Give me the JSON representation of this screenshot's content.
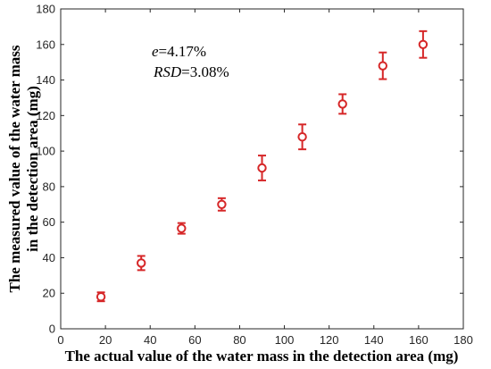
{
  "chart_data": {
    "type": "scatter",
    "xlabel": "The actual value of the water mass in the detection area (mg)",
    "ylabel_lines": [
      "The measured value of the water mass",
      "in the detection area (mg)"
    ],
    "xlim": [
      0,
      180
    ],
    "ylim": [
      0,
      180
    ],
    "xticks": [
      0,
      20,
      40,
      60,
      80,
      100,
      120,
      140,
      160,
      180
    ],
    "yticks": [
      0,
      20,
      40,
      60,
      80,
      100,
      120,
      140,
      160,
      180
    ],
    "grid": false,
    "points": [
      {
        "x": 18,
        "y": 18,
        "err": 2.5
      },
      {
        "x": 36,
        "y": 37,
        "err": 4.0
      },
      {
        "x": 54,
        "y": 56.5,
        "err": 3.0
      },
      {
        "x": 72,
        "y": 70,
        "err": 3.5
      },
      {
        "x": 90,
        "y": 90.5,
        "err": 7.0
      },
      {
        "x": 108,
        "y": 108,
        "err": 7.0
      },
      {
        "x": 126,
        "y": 126.5,
        "err": 5.5
      },
      {
        "x": 144,
        "y": 148,
        "err": 7.5
      },
      {
        "x": 162,
        "y": 160,
        "err": 7.5
      }
    ],
    "annotations": {
      "e_symbol": "e",
      "e_value": "=4.17%",
      "rsd_symbol": "RSD",
      "rsd_value": "=3.08%"
    },
    "colors": {
      "marker": "#d62728",
      "axis": "#262626"
    }
  }
}
